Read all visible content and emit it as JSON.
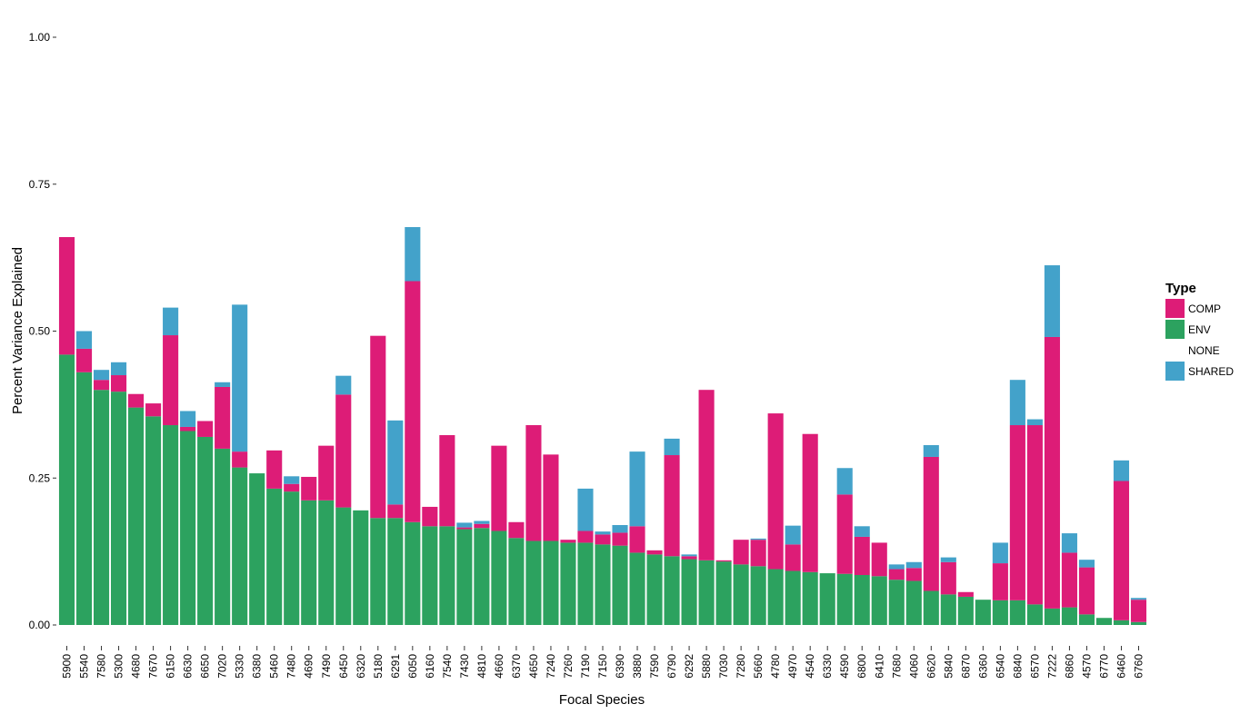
{
  "chart_data": {
    "type": "bar",
    "stacked": true,
    "title": "",
    "xlabel": "Focal Species",
    "ylabel": "Percent Variance Explained",
    "ylim": [
      0,
      1
    ],
    "yticks": [
      "0.00",
      "0.25",
      "0.50",
      "0.75",
      "1.00"
    ],
    "yticks_values": [
      0,
      0.25,
      0.5,
      0.75,
      1.0
    ],
    "grid": false,
    "legend": {
      "title": "Type",
      "position": "right",
      "entries": [
        {
          "name": "COMP",
          "color": "#DD1C77"
        },
        {
          "name": "ENV",
          "color": "#2CA25F"
        },
        {
          "name": "NONE",
          "color": "#FFFFFF"
        },
        {
          "name": "SHARED",
          "color": "#43A2CA"
        }
      ]
    },
    "categories": [
      "5900",
      "5540",
      "7580",
      "5300",
      "4680",
      "7670",
      "6150",
      "6630",
      "6650",
      "7020",
      "5330",
      "6380",
      "5460",
      "7480",
      "4690",
      "7490",
      "6450",
      "6320",
      "5180",
      "6291",
      "6050",
      "6160",
      "7540",
      "7430",
      "4810",
      "4660",
      "6370",
      "4650",
      "7240",
      "7260",
      "7190",
      "7150",
      "6390",
      "3880",
      "7590",
      "6790",
      "6292",
      "5880",
      "7030",
      "7280",
      "5660",
      "4780",
      "4970",
      "4540",
      "6330",
      "4590",
      "6800",
      "6410",
      "7680",
      "4060",
      "6620",
      "5840",
      "6870",
      "6360",
      "6540",
      "6840",
      "6570",
      "7222",
      "6860",
      "4570",
      "6770",
      "6460",
      "6760"
    ],
    "series": [
      {
        "name": "ENV",
        "color": "#2CA25F",
        "values": [
          0.46,
          0.43,
          0.4,
          0.397,
          0.37,
          0.355,
          0.34,
          0.33,
          0.32,
          0.3,
          0.268,
          0.258,
          0.232,
          0.227,
          0.212,
          0.212,
          0.2,
          0.195,
          0.182,
          0.182,
          0.175,
          0.168,
          0.168,
          0.163,
          0.165,
          0.16,
          0.148,
          0.143,
          0.143,
          0.14,
          0.14,
          0.137,
          0.135,
          0.123,
          0.12,
          0.117,
          0.112,
          0.11,
          0.108,
          0.103,
          0.1,
          0.095,
          0.092,
          0.09,
          0.088,
          0.087,
          0.085,
          0.083,
          0.077,
          0.075,
          0.058,
          0.052,
          0.048,
          0.043,
          0.042,
          0.042,
          0.035,
          0.028,
          0.03,
          0.018,
          0.012,
          0.008,
          0.005
        ]
      },
      {
        "name": "COMP",
        "color": "#DD1C77",
        "values": [
          0.2,
          0.04,
          0.017,
          0.028,
          0.023,
          0.022,
          0.153,
          0.007,
          0.027,
          0.105,
          0.027,
          0.0,
          0.065,
          0.013,
          0.04,
          0.093,
          0.192,
          0.0,
          0.31,
          0.023,
          0.41,
          0.033,
          0.155,
          0.003,
          0.007,
          0.145,
          0.027,
          0.197,
          0.147,
          0.005,
          0.02,
          0.017,
          0.022,
          0.045,
          0.007,
          0.172,
          0.005,
          0.29,
          0.002,
          0.042,
          0.045,
          0.265,
          0.045,
          0.235,
          0.0,
          0.135,
          0.065,
          0.057,
          0.018,
          0.022,
          0.228,
          0.055,
          0.008,
          0.0,
          0.063,
          0.298,
          0.305,
          0.462,
          0.093,
          0.08,
          0.0,
          0.237,
          0.038
        ]
      },
      {
        "name": "SHARED",
        "color": "#43A2CA",
        "values": [
          0.0,
          0.03,
          0.017,
          0.022,
          0.0,
          0.0,
          0.047,
          0.027,
          0.0,
          0.008,
          0.25,
          0.0,
          0.0,
          0.013,
          0.0,
          0.0,
          0.032,
          0.0,
          0.0,
          0.143,
          0.092,
          0.0,
          0.0,
          0.008,
          0.005,
          0.0,
          0.0,
          0.0,
          0.0,
          0.0,
          0.072,
          0.005,
          0.013,
          0.127,
          0.0,
          0.028,
          0.003,
          0.0,
          0.0,
          0.0,
          0.002,
          0.0,
          0.032,
          0.0,
          0.0,
          0.045,
          0.018,
          0.0,
          0.008,
          0.01,
          0.02,
          0.008,
          0.0,
          0.0,
          0.035,
          0.077,
          0.01,
          0.122,
          0.033,
          0.013,
          0.0,
          0.035,
          0.003
        ]
      }
    ]
  }
}
